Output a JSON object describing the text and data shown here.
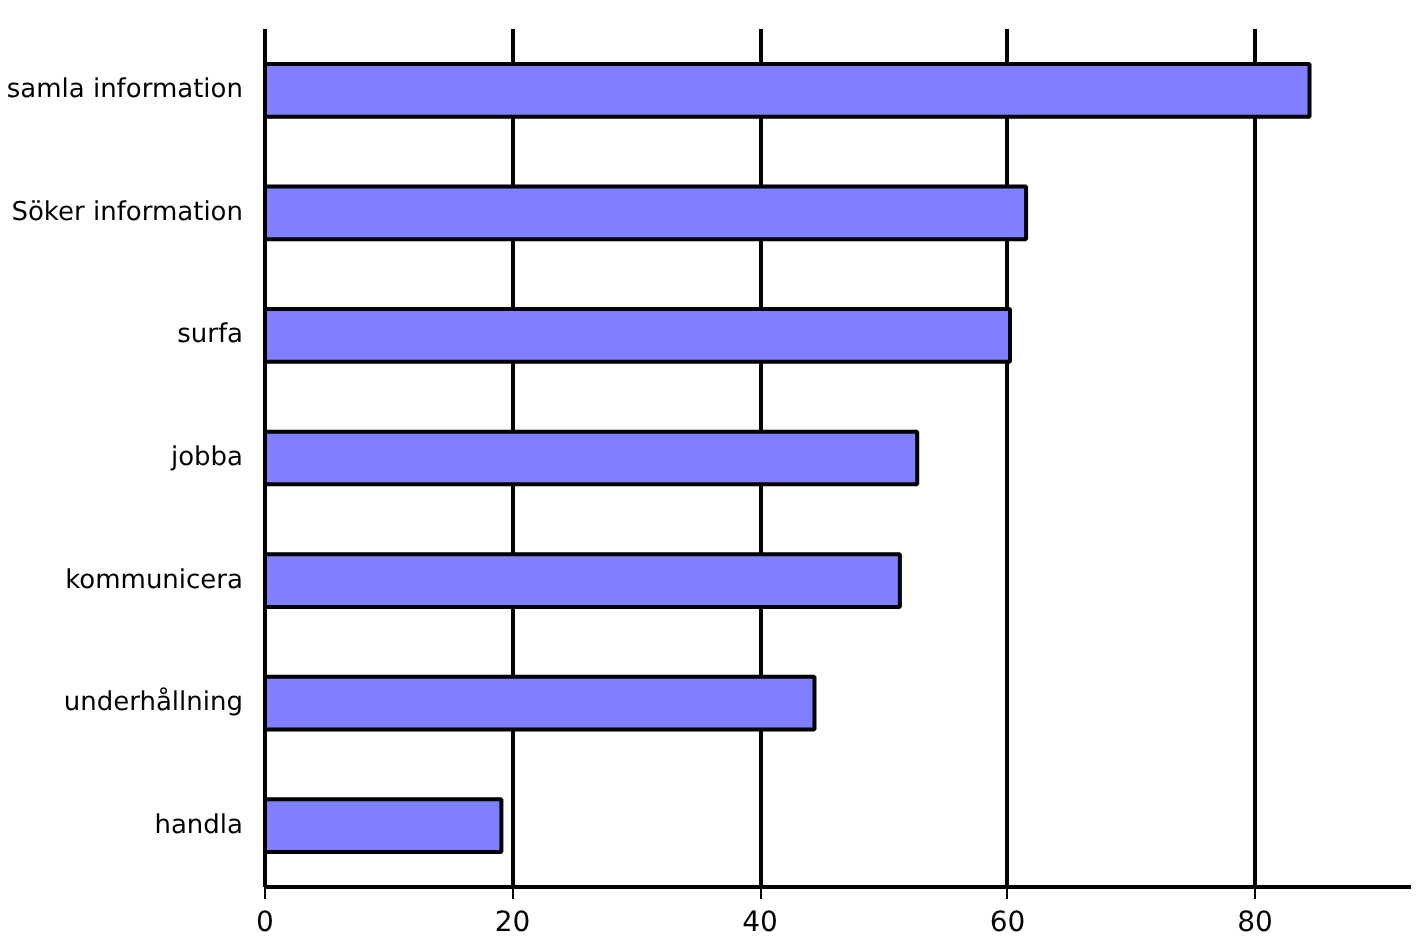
{
  "chart_data": {
    "type": "bar",
    "orientation": "horizontal",
    "categories": [
      "samla information",
      "Söker information",
      "surfa",
      "jobba",
      "kommunicera",
      "underhållning",
      "handla"
    ],
    "values": [
      84.4,
      61.5,
      60.2,
      52.7,
      51.3,
      44.4,
      19.1
    ],
    "color": "#8080ff",
    "xlim": [
      0,
      92.6
    ],
    "xticks": [
      0,
      20,
      40,
      60,
      80
    ],
    "grid": "x"
  }
}
